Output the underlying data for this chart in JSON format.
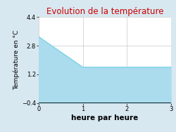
{
  "title": "Evolution de la température",
  "xlabel": "heure par heure",
  "ylabel": "Température en °C",
  "x": [
    0,
    1,
    2,
    3
  ],
  "y": [
    3.3,
    1.6,
    1.6,
    1.6
  ],
  "xlim": [
    0,
    3
  ],
  "ylim": [
    -0.4,
    4.4
  ],
  "xticks": [
    0,
    1,
    2,
    3
  ],
  "yticks": [
    -0.4,
    1.2,
    2.8,
    4.4
  ],
  "line_color": "#7dd4e8",
  "fill_color": "#aadcee",
  "title_color": "#cc0000",
  "bg_color": "#d8e8f0",
  "axes_bg_color": "#ffffff",
  "grid_color": "#bbbbbb",
  "baseline": -0.4,
  "title_fontsize": 8.5,
  "label_fontsize": 6.5,
  "tick_fontsize": 6,
  "xlabel_fontsize": 7.5
}
